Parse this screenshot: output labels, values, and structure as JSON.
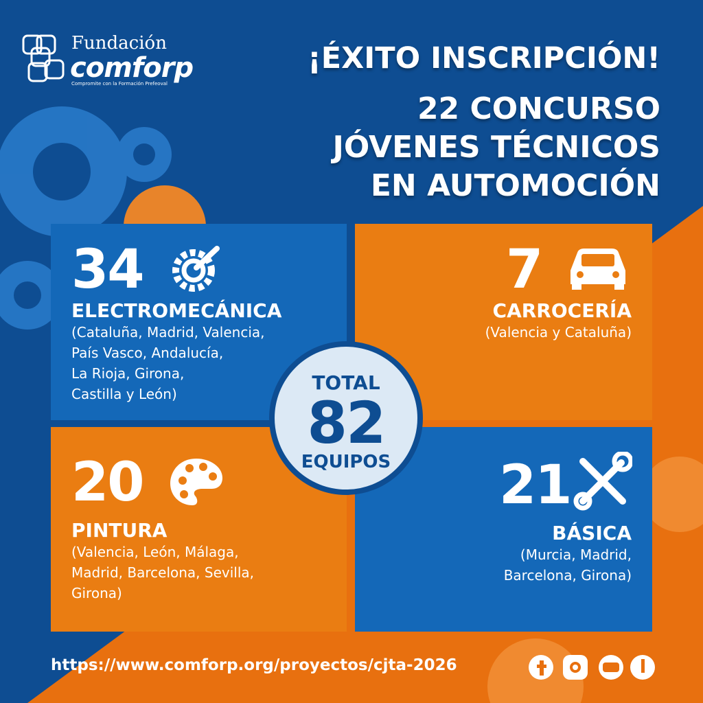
{
  "logo": {
    "name": "Fundación",
    "brand": "comforp",
    "tagline": "Compromite con la Formación Prefeoval"
  },
  "title": {
    "headline": "¡ÉXITO INSCRIPCIÓN!",
    "lines": [
      "22 CONCURSO",
      "JÓVENES TÉCNICOS",
      "EN AUTOMOCIÓN"
    ]
  },
  "cards": [
    {
      "number": 34,
      "category": "ELECTROMECÁNICA",
      "regions": [
        "(Cataluña, Madrid, Valencia,",
        "País Vasco, Andalucía,",
        "La Rioja, Girona,",
        "Castilla y León)"
      ]
    },
    {
      "number": 7,
      "category": "CARROCERÍA",
      "regions": [
        "(Valencia y Cataluña)"
      ]
    },
    {
      "number": 20,
      "category": "PINTURA",
      "regions": [
        "(Valencia, León, Málaga,",
        "Madrid, Barcelona, Sevilla,",
        "Girona)"
      ]
    },
    {
      "number": 21,
      "category": "BÁSICA",
      "regions": [
        "(Murcia, Madrid,",
        "Barcelona, Girona)"
      ]
    }
  ],
  "total": {
    "label": "TOTAL",
    "number": 82,
    "unit": "EQUIPOS"
  },
  "footer": {
    "url": "https://www.comforp.org/proyectos/cjta-2026"
  }
}
